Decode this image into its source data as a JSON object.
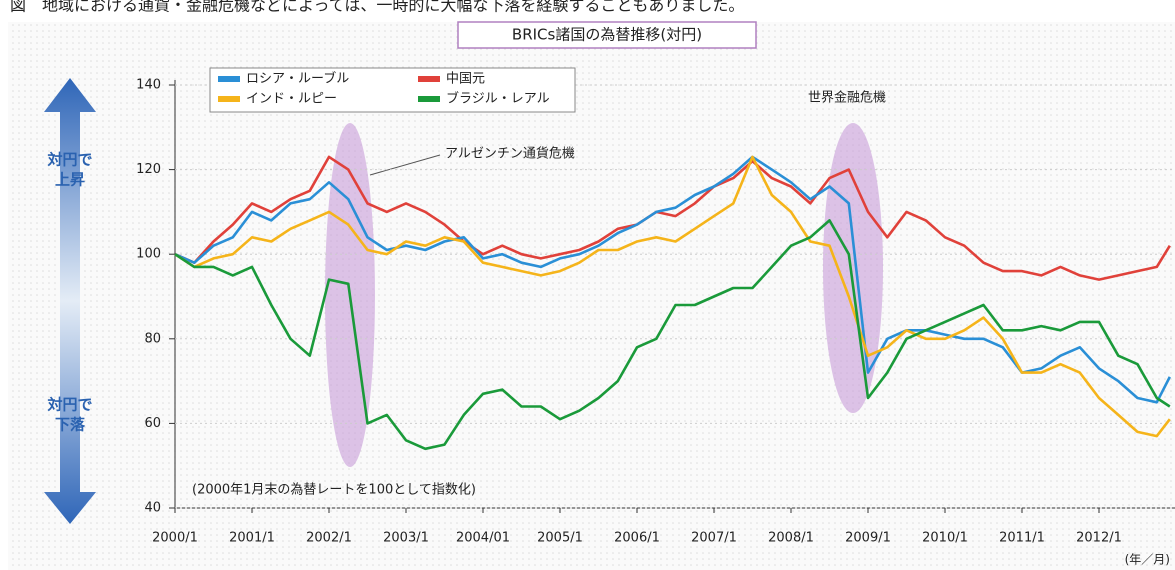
{
  "header_text": "図　地域における通貨・金融危機などによっては、一時的に大幅な下落を経験することもありました。",
  "chart_data": {
    "type": "line",
    "title": "BRICs諸国の為替推移(対円)",
    "x": [
      2000,
      2000.25,
      2000.5,
      2000.75,
      2001,
      2001.25,
      2001.5,
      2001.75,
      2002,
      2002.25,
      2002.5,
      2002.75,
      2003,
      2003.25,
      2003.5,
      2003.75,
      2004,
      2004.25,
      2004.5,
      2004.75,
      2005,
      2005.25,
      2005.5,
      2005.75,
      2006,
      2006.25,
      2006.5,
      2006.75,
      2007,
      2007.25,
      2007.5,
      2007.75,
      2008,
      2008.25,
      2008.5,
      2008.75,
      2009,
      2009.25,
      2009.5,
      2009.75,
      2010,
      2010.25,
      2010.5,
      2010.75,
      2011,
      2011.25,
      2011.5,
      2011.75,
      2012,
      2012.25,
      2012.5,
      2012.75,
      2012.92
    ],
    "series": [
      {
        "name": "ロシア・ルーブル",
        "color": "#2a8fd6",
        "values": [
          100,
          98,
          102,
          104,
          110,
          108,
          112,
          113,
          117,
          113,
          104,
          101,
          102,
          101,
          103,
          104,
          99,
          100,
          98,
          97,
          99,
          100,
          102,
          105,
          107,
          110,
          111,
          114,
          116,
          119,
          123,
          120,
          117,
          113,
          116,
          112,
          72,
          80,
          82,
          82,
          81,
          80,
          80,
          78,
          72,
          73,
          76,
          78,
          73,
          70,
          66,
          65,
          71
        ]
      },
      {
        "name": "中国元",
        "color": "#e0413a",
        "values": [
          100,
          98,
          103,
          107,
          112,
          110,
          113,
          115,
          123,
          120,
          112,
          110,
          112,
          110,
          107,
          103,
          100,
          102,
          100,
          99,
          100,
          101,
          103,
          106,
          107,
          110,
          109,
          112,
          116,
          118,
          122,
          118,
          116,
          112,
          118,
          120,
          110,
          104,
          110,
          108,
          104,
          102,
          98,
          96,
          96,
          95,
          97,
          95,
          94,
          95,
          96,
          97,
          102
        ]
      },
      {
        "name": "インド・ルピー",
        "color": "#f5b41a",
        "values": [
          100,
          97,
          99,
          100,
          104,
          103,
          106,
          108,
          110,
          107,
          101,
          100,
          103,
          102,
          104,
          103,
          98,
          97,
          96,
          95,
          96,
          98,
          101,
          101,
          103,
          104,
          103,
          106,
          109,
          112,
          123,
          114,
          110,
          103,
          102,
          90,
          76,
          78,
          82,
          80,
          80,
          82,
          85,
          80,
          72,
          72,
          74,
          72,
          66,
          62,
          58,
          57,
          61
        ]
      },
      {
        "name": "ブラジル・レアル",
        "color": "#1a9a3a",
        "values": [
          100,
          97,
          97,
          95,
          97,
          88,
          80,
          76,
          94,
          93,
          60,
          62,
          56,
          54,
          55,
          62,
          67,
          68,
          64,
          64,
          61,
          63,
          66,
          70,
          78,
          80,
          88,
          88,
          90,
          92,
          92,
          97,
          102,
          104,
          108,
          100,
          66,
          72,
          80,
          82,
          84,
          86,
          88,
          82,
          82,
          83,
          82,
          84,
          84,
          76,
          74,
          66,
          64
        ]
      }
    ],
    "xlim": [
      2000,
      2013
    ],
    "xticks": [
      {
        "value": 2000,
        "label": "2000/1"
      },
      {
        "value": 2001,
        "label": "2001/1"
      },
      {
        "value": 2002,
        "label": "2002/1"
      },
      {
        "value": 2003,
        "label": "2003/1"
      },
      {
        "value": 2004,
        "label": "2004/01"
      },
      {
        "value": 2005,
        "label": "2005/1"
      },
      {
        "value": 2006,
        "label": "2006/1"
      },
      {
        "value": 2007,
        "label": "2007/1"
      },
      {
        "value": 2008,
        "label": "2008/1"
      },
      {
        "value": 2009,
        "label": "2009/1"
      },
      {
        "value": 2010,
        "label": "2010/1"
      },
      {
        "value": 2011,
        "label": "2011/1"
      },
      {
        "value": 2012,
        "label": "2012/1"
      }
    ],
    "ylim": [
      40,
      140
    ],
    "yticks": [
      40,
      60,
      80,
      100,
      120,
      140
    ],
    "grid": true,
    "x_unit": "(年／月)",
    "annotations": [
      "アルゼンチン通貨危機",
      "世界金融危機",
      "(2000年1月末の為替レートを100として指数化)"
    ],
    "arrow_up": [
      "対円で",
      "上昇"
    ],
    "arrow_down": [
      "対円で",
      "下落"
    ]
  }
}
